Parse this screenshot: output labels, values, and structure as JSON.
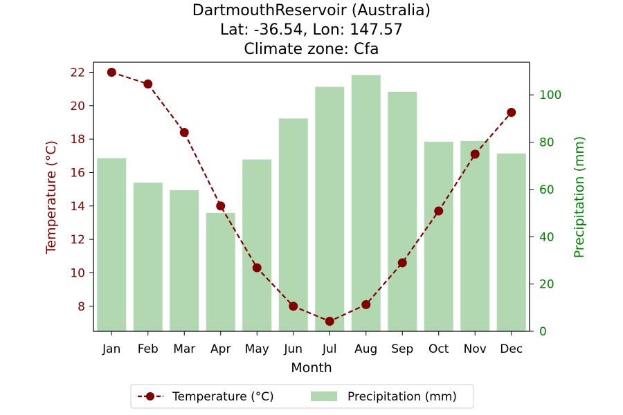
{
  "chart_data": {
    "type": "bar+line",
    "title_lines": [
      "DartmouthReservoir (Australia)",
      "Lat: -36.54, Lon: 147.57",
      "Climate zone: Cfa"
    ],
    "xlabel": "Month",
    "ylabel_left": "Temperature (°C)",
    "ylabel_right": "Precipitation (mm)",
    "categories": [
      "Jan",
      "Feb",
      "Mar",
      "Apr",
      "May",
      "Jun",
      "Jul",
      "Aug",
      "Sep",
      "Oct",
      "Nov",
      "Dec"
    ],
    "temperature": {
      "name": "Temperature (°C)",
      "values": [
        22.0,
        21.3,
        18.4,
        14.0,
        10.3,
        8.0,
        7.1,
        8.1,
        10.6,
        13.7,
        17.1,
        19.6
      ],
      "color": "#800000",
      "ylim": [
        6.5,
        22.6
      ],
      "ticks": [
        8,
        10,
        12,
        14,
        16,
        18,
        20,
        22
      ]
    },
    "precipitation": {
      "name": "Precipitation (mm)",
      "values": [
        73.2,
        62.9,
        59.7,
        50.1,
        72.7,
        90.0,
        103.4,
        108.4,
        101.3,
        80.2,
        80.5,
        75.2
      ],
      "color": "#b2d8b2",
      "ylim": [
        0,
        113.8
      ],
      "ticks": [
        0,
        20,
        40,
        60,
        80,
        100
      ]
    },
    "legend": {
      "placement": "bottom-center",
      "entries": [
        "Temperature (°C)",
        "Precipitation (mm)"
      ]
    },
    "axis_colors": {
      "left": "#800000",
      "right": "#008000"
    },
    "grid": false
  }
}
